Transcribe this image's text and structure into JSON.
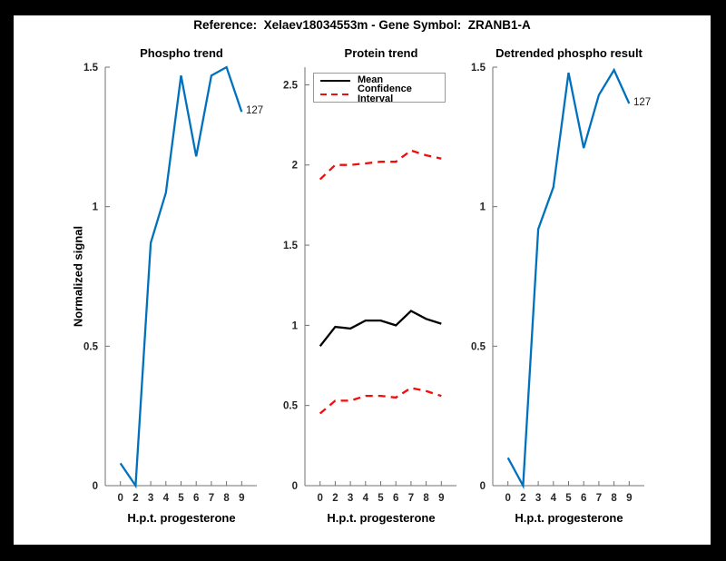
{
  "figure": {
    "title": "Reference:  Xelaev18034553m - Gene Symbol:  ZRANB1-A",
    "border_color": "#000000",
    "canvas_color": "#ffffff"
  },
  "colors": {
    "blue": "#0072BD",
    "red": "#f20c0c",
    "black": "#000000"
  },
  "chart_data": [
    {
      "key": "phospho-trend",
      "type": "line",
      "title": "Phospho trend",
      "xlabel": "H.p.t. progesterone",
      "ylabel": "Normalized signal",
      "x_tick_labels": [
        "0",
        "2",
        "3",
        "4",
        "5",
        "6",
        "7",
        "8",
        "9"
      ],
      "y_ticks": [
        0,
        0.5,
        1,
        1.5
      ],
      "y_tick_labels": [
        "0",
        "0.5",
        "1",
        "1.5"
      ],
      "ylim": [
        0,
        1.5
      ],
      "grid": false,
      "series": [
        {
          "name": "phospho-signal",
          "color": "#0072BD",
          "style": "solid",
          "values": [
            0.08,
            0.0,
            0.87,
            1.05,
            1.47,
            1.18,
            1.47,
            1.5,
            1.34
          ]
        }
      ],
      "end_label": "127"
    },
    {
      "key": "protein-trend",
      "type": "line",
      "title": "Protein trend",
      "xlabel": "H.p.t. progesterone",
      "ylabel": "",
      "x_tick_labels": [
        "0",
        "2",
        "3",
        "4",
        "5",
        "6",
        "7",
        "8",
        "9"
      ],
      "y_ticks": [
        0,
        0.5,
        1,
        1.5,
        2,
        2.5
      ],
      "y_tick_labels": [
        "0",
        "0.5",
        "1",
        "1.5",
        "2",
        "2.5"
      ],
      "ylim": [
        0,
        2.61
      ],
      "grid": false,
      "legend": {
        "position": "top-left",
        "entries": [
          {
            "label": "Mean",
            "color": "#000000",
            "style": "solid"
          },
          {
            "label": "Confidence Interval",
            "color": "#f20c0c",
            "style": "dashed"
          }
        ]
      },
      "series": [
        {
          "name": "mean",
          "color": "#000000",
          "style": "solid",
          "values": [
            0.87,
            0.99,
            0.98,
            1.03,
            1.03,
            1.0,
            1.09,
            1.04,
            1.01
          ]
        },
        {
          "name": "confidence-interval-upper",
          "color": "#f20c0c",
          "style": "dashed",
          "values": [
            1.91,
            2.0,
            2.0,
            2.01,
            2.02,
            2.02,
            2.09,
            2.06,
            2.04
          ]
        },
        {
          "name": "confidence-interval-lower",
          "color": "#f20c0c",
          "style": "dashed",
          "values": [
            0.45,
            0.53,
            0.53,
            0.56,
            0.56,
            0.55,
            0.61,
            0.59,
            0.56
          ]
        }
      ]
    },
    {
      "key": "detrended-phospho-result",
      "type": "line",
      "title": "Detrended phospho result",
      "xlabel": "H.p.t. progesterone",
      "ylabel": "",
      "x_tick_labels": [
        "0",
        "2",
        "3",
        "4",
        "5",
        "6",
        "7",
        "8",
        "9"
      ],
      "y_ticks": [
        0,
        0.5,
        1,
        1.5
      ],
      "y_tick_labels": [
        "0",
        "0.5",
        "1",
        "1.5"
      ],
      "ylim": [
        0,
        1.5
      ],
      "grid": false,
      "series": [
        {
          "name": "detrended-phospho-signal",
          "color": "#0072BD",
          "style": "solid",
          "values": [
            0.1,
            0.0,
            0.92,
            1.07,
            1.48,
            1.21,
            1.4,
            1.49,
            1.37
          ]
        }
      ],
      "end_label": "127"
    }
  ]
}
